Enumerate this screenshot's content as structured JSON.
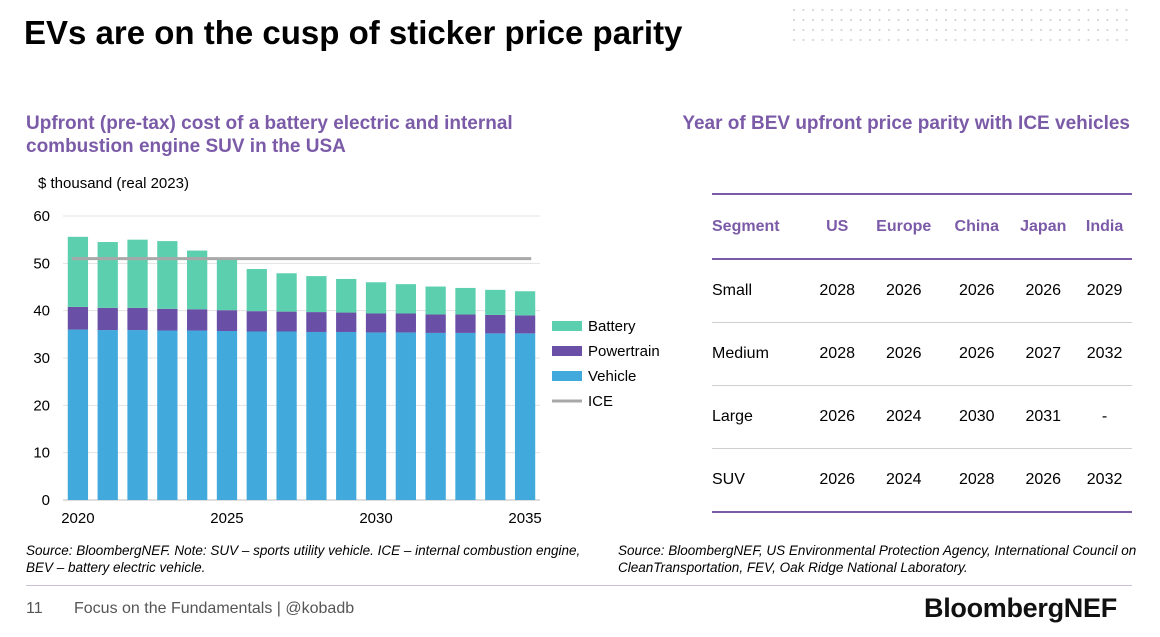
{
  "slide": {
    "title": "EVs are on the cusp of sticker price parity",
    "page_number": "11",
    "footer_text": "Focus on the Fundamentals  |  @kobadb",
    "brand": "BloombergNEF"
  },
  "colors": {
    "battery": "#5ccfae",
    "powertrain": "#6a4fa6",
    "vehicle": "#41a9dc",
    "ice": "#a8a8a8",
    "accent": "#7b5ba8"
  },
  "chart_data": {
    "type": "bar",
    "stacked": true,
    "title": "Upfront (pre-tax) cost of a battery electric and internal combustion engine SUV in the USA",
    "ylabel": "$ thousand (real 2023)",
    "ylim": [
      0,
      60
    ],
    "yticks": [
      0,
      10,
      20,
      30,
      40,
      50,
      60
    ],
    "grid": true,
    "legend_position": "right",
    "x": [
      2020,
      2021,
      2022,
      2023,
      2024,
      2025,
      2026,
      2027,
      2028,
      2029,
      2030,
      2031,
      2032,
      2033,
      2034,
      2035
    ],
    "xticks": [
      2020,
      2025,
      2030,
      2035
    ],
    "series": [
      {
        "name": "Vehicle",
        "kind": "bar",
        "values": [
          36,
          35.9,
          35.9,
          35.8,
          35.8,
          35.7,
          35.6,
          35.6,
          35.5,
          35.5,
          35.4,
          35.4,
          35.3,
          35.3,
          35.2,
          35.2
        ]
      },
      {
        "name": "Powertrain",
        "kind": "bar",
        "values": [
          4.8,
          4.7,
          4.7,
          4.6,
          4.5,
          4.4,
          4.3,
          4.2,
          4.2,
          4.1,
          4.0,
          4.0,
          3.9,
          3.9,
          3.9,
          3.8
        ]
      },
      {
        "name": "Battery",
        "kind": "bar",
        "values": [
          14.8,
          13.9,
          14.4,
          14.3,
          12.4,
          11.0,
          8.9,
          8.1,
          7.6,
          7.1,
          6.6,
          6.2,
          5.9,
          5.6,
          5.3,
          5.1
        ]
      },
      {
        "name": "ICE",
        "kind": "line",
        "values": [
          51,
          51,
          51,
          51,
          51,
          51,
          51,
          51,
          51,
          51,
          51,
          51,
          51,
          51,
          51,
          51
        ]
      }
    ],
    "legend": [
      "Battery",
      "Powertrain",
      "Vehicle",
      "ICE"
    ]
  },
  "chart_source": "Source: BloombergNEF. Note: SUV – sports utility vehicle. ICE – internal combustion engine, BEV – battery electric vehicle.",
  "table": {
    "title": "Year of BEV upfront price parity with ICE vehicles",
    "headers": [
      "Segment",
      "US",
      "Europe",
      "China",
      "Japan",
      "India"
    ],
    "rows": [
      [
        "Small",
        "2028",
        "2026",
        "2026",
        "2026",
        "2029"
      ],
      [
        "Medium",
        "2028",
        "2026",
        "2026",
        "2027",
        "2032"
      ],
      [
        "Large",
        "2026",
        "2024",
        "2030",
        "2031",
        "-"
      ],
      [
        "SUV",
        "2026",
        "2024",
        "2028",
        "2026",
        "2032"
      ]
    ]
  },
  "table_source": "Source: BloombergNEF, US Environmental Protection Agency, International Council on CleanTransportation, FEV, Oak Ridge National Laboratory."
}
